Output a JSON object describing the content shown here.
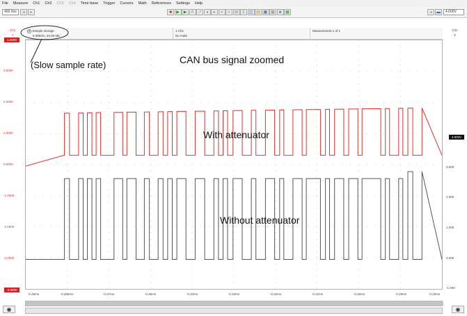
{
  "menu": [
    "File",
    "Measure",
    "Ch1",
    "Ch2",
    "Ch3",
    "Ch4",
    "Time base",
    "Trigger",
    "Cursors",
    "Math",
    "References",
    "Settings",
    "Help"
  ],
  "menu_dim": [
    false,
    false,
    false,
    false,
    true,
    true,
    false,
    false,
    false,
    false,
    false,
    false,
    false
  ],
  "toolbar": {
    "timebase_value": "400.0ns",
    "right_value": "4.000V",
    "buttons": [
      {
        "icon": "stop-icon",
        "glyph": "■",
        "cls": "red"
      },
      {
        "icon": "play-icon",
        "glyph": "▶",
        "cls": "green"
      },
      {
        "icon": "single-play-icon",
        "glyph": "▶",
        "cls": "green"
      },
      {
        "icon": "auto-icon",
        "glyph": "A",
        "cls": "grey"
      },
      {
        "icon": "edge-icon",
        "glyph": "↗",
        "cls": "grey"
      },
      {
        "icon": "zoom-out-icon",
        "glyph": "◂",
        "cls": "grey"
      },
      {
        "icon": "zoom-in-icon",
        "glyph": "▸",
        "cls": "grey"
      },
      {
        "icon": "scroll-left-icon",
        "glyph": "«",
        "cls": "grey"
      },
      {
        "icon": "scroll-right-icon",
        "glyph": "»",
        "cls": "grey"
      },
      {
        "icon": "fit-icon",
        "glyph": "⊞",
        "cls": "grey"
      },
      {
        "icon": "cursor-icon",
        "glyph": "Σ",
        "cls": "grey"
      },
      {
        "icon": "measure-icon",
        "glyph": "◫",
        "cls": "blue"
      },
      {
        "icon": "print-icon",
        "glyph": "▤",
        "cls": "yellow"
      },
      {
        "icon": "save-icon",
        "glyph": "▦",
        "cls": "blue"
      },
      {
        "icon": "settings-icon",
        "glyph": "▩",
        "cls": "grey"
      },
      {
        "icon": "camera-icon",
        "glyph": "◙",
        "cls": "grey"
      },
      {
        "icon": "grid-icon",
        "glyph": "▦",
        "cls": "green"
      }
    ]
  },
  "channel": {
    "left": {
      "name": "Ch1",
      "unit": "V"
    },
    "right": {
      "name": "Ch2",
      "unit": "V"
    }
  },
  "info": {
    "sample_line1": "Sample storage",
    "sample_line2": "5.00kS/s, 40.00 Mb",
    "ch_line1": "1 Ch1",
    "ch_line2": "No math",
    "measurement": "Measurement 1 of 1"
  },
  "annotations": {
    "slow": "(Slow sample rate)",
    "title": "CAN bus signal zoomed",
    "with": "With attenuator",
    "without": "Without attenuator"
  },
  "y_left": [
    "4.0000",
    "3.0000",
    "2.0000",
    "1.0000",
    "0.0000",
    "-1.0000",
    "-2.0000",
    "-3.0000",
    "-4.0000"
  ],
  "y_left_box_top_color": "#d02020",
  "y_right": [
    "4.000V",
    "3.000",
    "2.000",
    "1.000",
    "0.000",
    "-1.000"
  ],
  "x_labels": [
    "-0.45ms",
    "-0.395ms",
    "-0.37ms",
    "-0.35ms",
    "-0.34ms",
    "-0.33ms",
    "-0.32ms",
    "-0.31ms",
    "-0.30ms",
    "-0.29ms",
    "-0.28ms"
  ],
  "chart_data": {
    "type": "line",
    "title": "CAN bus signal zoomed",
    "xlabel": "",
    "ylabel": "",
    "ylim": [
      -4,
      4
    ],
    "grid": true,
    "series": [
      {
        "name": "With attenuator",
        "color": "#e23030",
        "transitions": [
          0.0,
          0.093,
          0.105,
          0.127,
          0.138,
          0.148,
          0.159,
          0.169,
          0.18,
          0.212,
          0.233,
          0.243,
          0.265,
          0.285,
          0.297,
          0.318,
          0.33,
          0.341,
          0.352,
          0.363,
          0.385,
          0.407,
          0.43,
          0.452,
          0.463,
          0.474,
          0.485,
          0.498,
          0.52,
          0.542,
          0.553,
          0.576,
          0.598,
          0.61,
          0.62,
          0.642,
          0.664,
          0.674,
          0.708,
          0.72,
          0.73,
          0.742,
          0.764,
          0.776,
          0.798,
          0.808,
          0.853,
          0.864,
          0.874,
          0.896,
          0.906,
          0.918,
          0.93,
          0.952,
          1.0
        ],
        "high": 1.65,
        "low": 0.3,
        "baseline_start": -0.05
      },
      {
        "name": "Without attenuator",
        "color": "#555555",
        "high": -0.45,
        "low": -3.05
      }
    ]
  },
  "slider": {
    "label": ""
  },
  "icons": {
    "eye_left": "eye-icon",
    "eye_right": "eye-icon"
  }
}
